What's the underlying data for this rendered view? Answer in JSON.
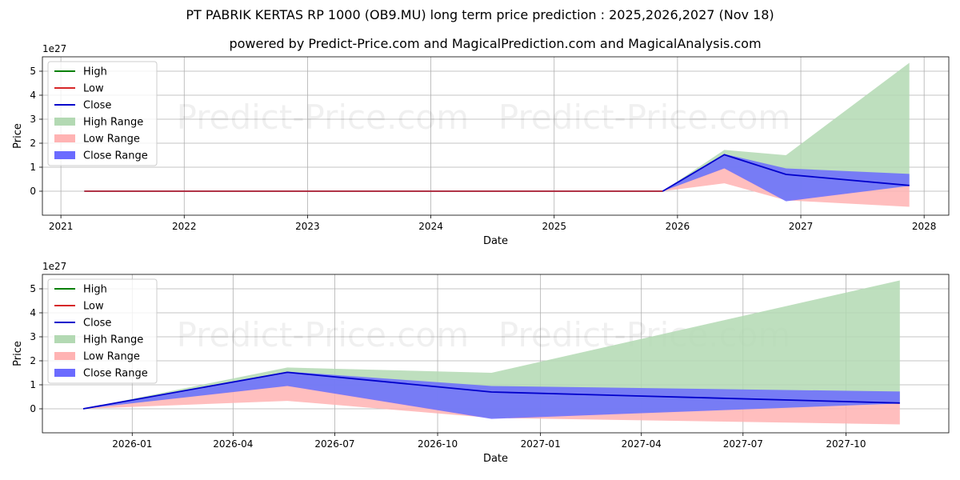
{
  "header": {
    "title": "PT PABRIK KERTAS RP 1000 (OB9.MU) long term price prediction : 2025,2026,2027 (Nov 18)",
    "subtitle": "powered by Predict-Price.com and MagicalPrediction.com and MagicalAnalysis.com"
  },
  "watermark": "Predict-Price.com",
  "colors": {
    "high": "#008000",
    "low": "#d62728",
    "close": "#0000cc",
    "high_range": "#b3d9b3",
    "low_range": "#ffb3b3",
    "close_range": "#6b6bff",
    "grid": "#b0b0b0"
  },
  "legend_labels": [
    "High",
    "Low",
    "Close",
    "High Range",
    "Low Range",
    "Close Range"
  ],
  "chart_data": [
    {
      "type": "area",
      "xlabel": "Date",
      "ylabel": "Price",
      "y_multiplier_label": "1e27",
      "xlim": [
        2020.85,
        2028.2
      ],
      "ylim": [
        -1.0,
        5.6
      ],
      "x_ticks": [
        2021,
        2022,
        2023,
        2024,
        2025,
        2026,
        2027,
        2028
      ],
      "x_tick_labels": [
        "2021",
        "2022",
        "2023",
        "2024",
        "2025",
        "2026",
        "2027",
        "2028"
      ],
      "y_ticks": [
        0,
        1,
        2,
        3,
        4,
        5
      ],
      "y_tick_labels": [
        "0",
        "1",
        "2",
        "3",
        "4",
        "5"
      ],
      "legend_position": "top-left",
      "history": {
        "x": [
          2021.19,
          2025.88
        ],
        "close": [
          0,
          0
        ],
        "low": [
          0,
          0
        ],
        "high": [
          0,
          0
        ]
      },
      "series": [
        {
          "name": "Close",
          "x": [
            2025.88,
            2026.38,
            2026.88,
            2027.88
          ],
          "values": [
            0,
            1.52,
            0.7,
            0.24
          ]
        }
      ],
      "ranges": {
        "x": [
          2025.88,
          2026.38,
          2026.88,
          2027.88
        ],
        "high_range": {
          "upper": [
            0,
            1.72,
            1.5,
            5.35
          ],
          "lower": [
            0,
            0.95,
            -0.38,
            0.22
          ]
        },
        "low_range": {
          "upper": [
            0,
            0.98,
            -0.38,
            0.22
          ],
          "lower": [
            0,
            0.33,
            -0.38,
            -0.65
          ]
        },
        "close_range": {
          "upper": [
            0,
            1.55,
            0.95,
            0.72
          ],
          "lower": [
            0,
            0.95,
            -0.42,
            0.22
          ]
        }
      }
    },
    {
      "type": "area",
      "xlabel": "Date",
      "ylabel": "Price",
      "y_multiplier_label": "1e27",
      "xlim": [
        2025.78,
        2028.0
      ],
      "ylim": [
        -1.0,
        5.6
      ],
      "x_ticks": [
        2026.0,
        2026.247,
        2026.496,
        2026.748,
        2027.0,
        2027.247,
        2027.496,
        2027.748
      ],
      "x_tick_labels": [
        "2026-01",
        "2026-04",
        "2026-07",
        "2026-10",
        "2027-01",
        "2027-04",
        "2027-07",
        "2027-10"
      ],
      "y_ticks": [
        0,
        1,
        2,
        3,
        4,
        5
      ],
      "y_tick_labels": [
        "0",
        "1",
        "2",
        "3",
        "4",
        "5"
      ],
      "legend_position": "top-left",
      "series": [
        {
          "name": "Close",
          "x": [
            2025.88,
            2026.38,
            2026.88,
            2027.88
          ],
          "values": [
            0,
            1.52,
            0.7,
            0.24
          ]
        }
      ],
      "ranges": {
        "x": [
          2025.88,
          2026.38,
          2026.88,
          2027.88
        ],
        "high_range": {
          "upper": [
            0,
            1.72,
            1.5,
            5.35
          ],
          "lower": [
            0,
            0.95,
            -0.38,
            0.22
          ]
        },
        "low_range": {
          "upper": [
            0,
            0.98,
            -0.38,
            0.22
          ],
          "lower": [
            0,
            0.33,
            -0.38,
            -0.65
          ]
        },
        "close_range": {
          "upper": [
            0,
            1.55,
            0.95,
            0.72
          ],
          "lower": [
            0,
            0.95,
            -0.42,
            0.22
          ]
        }
      }
    }
  ]
}
